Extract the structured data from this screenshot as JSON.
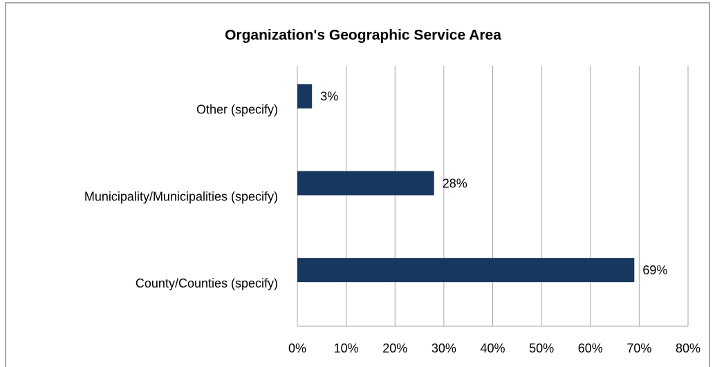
{
  "chart_data": {
    "type": "bar",
    "orientation": "horizontal",
    "title": "Organization's Geographic Service Area",
    "categories": [
      "Other (specify)",
      "Municipality/Municipalities (specify)",
      "County/Counties (specify)"
    ],
    "values": [
      3,
      28,
      69
    ],
    "value_labels": [
      "3%",
      "28%",
      "69%"
    ],
    "color": "#17375e",
    "xlim": [
      0,
      80
    ],
    "xticks": [
      {
        "value": 0,
        "label": "0%"
      },
      {
        "value": 10,
        "label": "10%"
      },
      {
        "value": 20,
        "label": "20%"
      },
      {
        "value": 30,
        "label": "30%"
      },
      {
        "value": 40,
        "label": "40%"
      },
      {
        "value": 50,
        "label": "50%"
      },
      {
        "value": 60,
        "label": "60%"
      },
      {
        "value": 70,
        "label": "70%"
      },
      {
        "value": 80,
        "label": "80%"
      }
    ],
    "grid": true
  }
}
